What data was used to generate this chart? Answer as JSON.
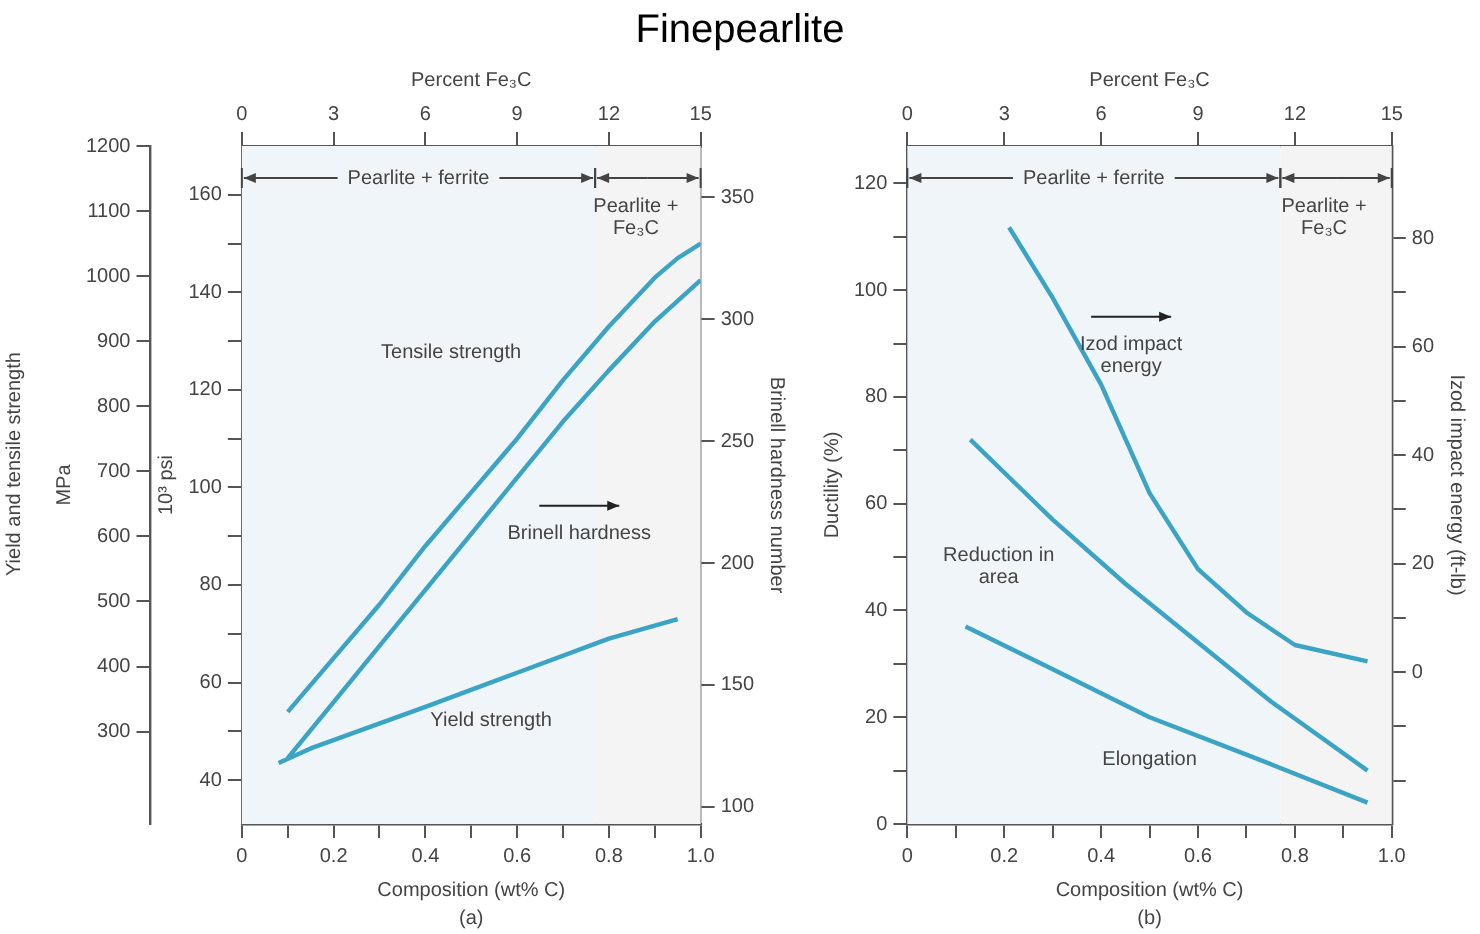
{
  "chart_data": [
    {
      "type": "line",
      "title": "Finepearlite",
      "xlabel": "Composition (wt% C)",
      "x2label": "Percent Fe₃C",
      "ylabel": "10³ psi",
      "y2label": "Brinell hardness number",
      "y3label": "MPa",
      "annotations": [
        "Yield and tensile strength",
        "(a)"
      ],
      "xlim": [
        0,
        1
      ],
      "xticks": [
        0,
        {
          "value": 0.1,
          "label": null
        },
        0.2,
        {
          "value": 0.3,
          "label": null
        },
        0.4,
        {
          "value": 0.5,
          "label": null
        },
        0.6,
        {
          "value": 0.7,
          "label": null
        },
        0.8,
        {
          "value": 0.9,
          "label": null
        },
        {
          "value": 1,
          "label": "1.0"
        }
      ],
      "x2lim": [
        0,
        15
      ],
      "x2ticks": [
        0,
        3,
        6,
        9,
        12,
        15
      ],
      "ylim": [
        31,
        170
      ],
      "yticks": [
        40,
        {
          "value": 50,
          "label": null
        },
        60,
        {
          "value": 70,
          "label": null
        },
        80,
        {
          "value": 90,
          "label": null
        },
        100,
        {
          "value": 110,
          "label": null
        },
        120,
        {
          "value": 130,
          "label": null
        },
        140,
        {
          "value": 150,
          "label": null
        },
        160
      ],
      "y2lim": [
        93,
        371
      ],
      "y2ticks": [
        100,
        150,
        200,
        250,
        300,
        350
      ],
      "y3lim": [
        158,
        1200
      ],
      "y3ticks": [
        300,
        400,
        500,
        600,
        700,
        800,
        900,
        1000,
        1100,
        1200
      ],
      "bands": [
        {
          "axis": "x",
          "from": 0,
          "to": 0.77,
          "label": "Pearlite + ferrite",
          "color": "#eff5f8"
        },
        {
          "axis": "x",
          "from": 0.77,
          "to": 1,
          "label": "Pearlite + Fe₃C",
          "color": "#f4f4f4"
        }
      ],
      "series": [
        {
          "name": "Tensile strength",
          "color": "#3ba3c4",
          "x": [
            0.1,
            0.2,
            0.3,
            0.4,
            0.5,
            0.6,
            0.7,
            0.8,
            0.9,
            0.95,
            1.0
          ],
          "values": [
            54,
            65,
            76,
            88,
            99,
            110,
            122,
            133,
            143,
            147,
            150
          ]
        },
        {
          "name": "Brinell hardness",
          "color": "#3ba3c4",
          "axis": "y2",
          "x": [
            0.1,
            0.2,
            0.3,
            0.4,
            0.5,
            0.6,
            0.7,
            0.8,
            0.9,
            1.0
          ],
          "values": [
            120,
            143,
            166,
            189,
            212,
            235,
            258,
            279,
            299,
            316
          ]
        },
        {
          "name": "Yield strength",
          "color": "#3ba3c4",
          "x": [
            0.08,
            0.15,
            0.4,
            0.6,
            0.8,
            0.95
          ],
          "values": [
            43.5,
            46.5,
            55,
            62,
            69,
            73
          ]
        }
      ]
    },
    {
      "type": "line",
      "xlabel": "Composition (wt% C)",
      "x2label": "Percent Fe₃C",
      "ylabel": "Ductility (%)",
      "y2label": "Izod impact energy (ft-lb)",
      "annotations": [
        "(b)"
      ],
      "xlim": [
        0,
        1
      ],
      "xticks": [
        0,
        {
          "value": 0.1,
          "label": null
        },
        0.2,
        {
          "value": 0.3,
          "label": null
        },
        0.4,
        {
          "value": 0.5,
          "label": null
        },
        0.6,
        {
          "value": 0.7,
          "label": null
        },
        0.8,
        {
          "value": 0.9,
          "label": null
        },
        {
          "value": 1,
          "label": "1.0"
        }
      ],
      "x2lim": [
        0,
        15
      ],
      "x2ticks": [
        0,
        3,
        6,
        9,
        12,
        15
      ],
      "ylim": [
        0,
        127
      ],
      "yticks": [
        0,
        {
          "value": 10,
          "label": null
        },
        20,
        {
          "value": 30,
          "label": null
        },
        40,
        {
          "value": 50,
          "label": null
        },
        60,
        {
          "value": 70,
          "label": null
        },
        80,
        {
          "value": 90,
          "label": null
        },
        100,
        {
          "value": 110,
          "label": null
        },
        120
      ],
      "y2lim": [
        -28,
        97
      ],
      "y2ticks": [
        {
          "value": -20,
          "label": null
        },
        {
          "value": -10,
          "label": null
        },
        0,
        {
          "value": 10,
          "label": null
        },
        20,
        {
          "value": 30,
          "label": null
        },
        40,
        {
          "value": 50,
          "label": null
        },
        60,
        {
          "value": 70,
          "label": null
        },
        80
      ],
      "bands": [
        {
          "axis": "x",
          "from": 0,
          "to": 0.77,
          "label": "Pearlite + ferrite",
          "color": "#eff5f8"
        },
        {
          "axis": "x",
          "from": 0.77,
          "to": 1,
          "label": "Pearlite + Fe₃C",
          "color": "#f4f4f4"
        }
      ],
      "series": [
        {
          "name": "Izod impact energy",
          "color": "#3ba3c4",
          "axis": "y2",
          "x": [
            0.21,
            0.3,
            0.4,
            0.5,
            0.6,
            0.7,
            0.8,
            0.95
          ],
          "values": [
            82,
            69,
            53,
            33,
            19,
            11,
            5,
            2
          ]
        },
        {
          "name": "Reduction in area",
          "color": "#3ba3c4",
          "x": [
            0.13,
            0.3,
            0.45,
            0.6,
            0.75,
            0.95
          ],
          "values": [
            72,
            57,
            45,
            34,
            23,
            10
          ]
        },
        {
          "name": "Elongation",
          "color": "#3ba3c4",
          "x": [
            0.12,
            0.3,
            0.5,
            0.7,
            0.95
          ],
          "values": [
            37,
            29,
            20,
            13,
            4
          ]
        }
      ]
    }
  ]
}
